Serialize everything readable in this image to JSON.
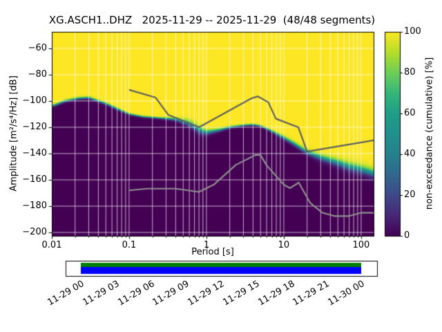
{
  "chart_data": {
    "type": "heatmap",
    "title": "XG.ASCH1..DHZ   2025-11-29 -- 2025-11-29  (48/48 segments)",
    "xlabel": "Period [s]",
    "ylabel": "Amplitude [m²/s⁴/Hz] [dB]",
    "xscale": "log",
    "xlim": [
      0.01,
      145
    ],
    "ylim": [
      -202.6,
      -47.4
    ],
    "grid": true,
    "grid_color": "#ffffff",
    "xticks": {
      "values": [
        0.01,
        0.1,
        1,
        10,
        100
      ],
      "labels": [
        "0.01",
        "0.1",
        "1",
        "10",
        "100"
      ]
    },
    "yticks": {
      "values": [
        -60,
        -80,
        -100,
        -120,
        -140,
        -160,
        -180,
        -200
      ],
      "labels": [
        "−60",
        "−80",
        "−100",
        "−120",
        "−140",
        "−160",
        "−180",
        "−200"
      ]
    },
    "colorbar": {
      "label": "non-exceedance (cumulative) [%]",
      "ticks": [
        0,
        20,
        40,
        60,
        80,
        100
      ],
      "tick_labels": [
        "0",
        "20",
        "40",
        "60",
        "80",
        "100"
      ],
      "colormap": "viridis",
      "stops": [
        [
          0.0,
          "#440154"
        ],
        [
          0.1,
          "#482878"
        ],
        [
          0.2,
          "#3e4a89"
        ],
        [
          0.3,
          "#31688e"
        ],
        [
          0.4,
          "#26828e"
        ],
        [
          0.5,
          "#21918c"
        ],
        [
          0.6,
          "#1f9e89"
        ],
        [
          0.7,
          "#35b779"
        ],
        [
          0.8,
          "#6ece58"
        ],
        [
          0.9,
          "#b5de2b"
        ],
        [
          1.0,
          "#fde725"
        ]
      ]
    },
    "psd_distribution": {
      "periods": [
        0.01,
        0.015,
        0.022,
        0.03,
        0.05,
        0.07,
        0.1,
        0.15,
        0.25,
        0.4,
        0.6,
        0.8,
        1.0,
        1.5,
        2,
        3,
        4,
        5,
        7,
        10,
        14,
        20,
        30,
        50,
        70,
        100,
        145
      ],
      "median_db": [
        -104,
        -100,
        -98,
        -97.5,
        -102,
        -106,
        -110,
        -112,
        -113,
        -114,
        -117,
        -122,
        -124,
        -122,
        -120,
        -118.5,
        -118,
        -119,
        -123,
        -128,
        -133,
        -139,
        -143,
        -147,
        -150,
        -152,
        -155
      ],
      "spread_db": [
        2,
        2,
        2,
        2,
        2,
        2,
        1.5,
        1.5,
        1.5,
        2.5,
        5,
        6,
        4,
        2.5,
        2,
        1.5,
        1.5,
        1.5,
        2,
        3,
        3.5,
        4,
        5,
        6,
        7,
        7,
        7
      ]
    },
    "noise_models": {
      "nhnm": {
        "color": "#5f5f5f",
        "points": [
          [
            0.1,
            -91.5
          ],
          [
            0.22,
            -97.4
          ],
          [
            0.32,
            -110.5
          ],
          [
            0.8,
            -120
          ],
          [
            3.8,
            -98
          ],
          [
            4.6,
            -96.5
          ],
          [
            6.3,
            -101
          ],
          [
            7.9,
            -113.5
          ],
          [
            15.4,
            -120
          ],
          [
            20,
            -138.5
          ],
          [
            145,
            -129.9
          ]
        ]
      },
      "nlnm": {
        "color": "#8f8f8f",
        "points": [
          [
            0.1,
            -168
          ],
          [
            0.17,
            -166.7
          ],
          [
            0.4,
            -166.7
          ],
          [
            0.8,
            -169.2
          ],
          [
            1.24,
            -163.7
          ],
          [
            2.4,
            -148.6
          ],
          [
            4.3,
            -141.1
          ],
          [
            5,
            -141.1
          ],
          [
            6,
            -149
          ],
          [
            10,
            -163.7
          ],
          [
            12,
            -166.3
          ],
          [
            15.6,
            -162.1
          ],
          [
            21.9,
            -177.5
          ],
          [
            31.6,
            -185
          ],
          [
            45,
            -187.5
          ],
          [
            70,
            -187.5
          ],
          [
            101,
            -185
          ],
          [
            145,
            -185
          ]
        ]
      }
    }
  },
  "timeline": {
    "tick_labels": [
      "11-29 00",
      "11-29 03",
      "11-29 06",
      "11-29 09",
      "11-29 12",
      "11-29 15",
      "11-29 18",
      "11-29 21",
      "11-30 00"
    ],
    "bands": [
      {
        "name": "segments-band",
        "color": "#008000"
      },
      {
        "name": "coverage-band",
        "color": "#0000ff"
      }
    ]
  }
}
